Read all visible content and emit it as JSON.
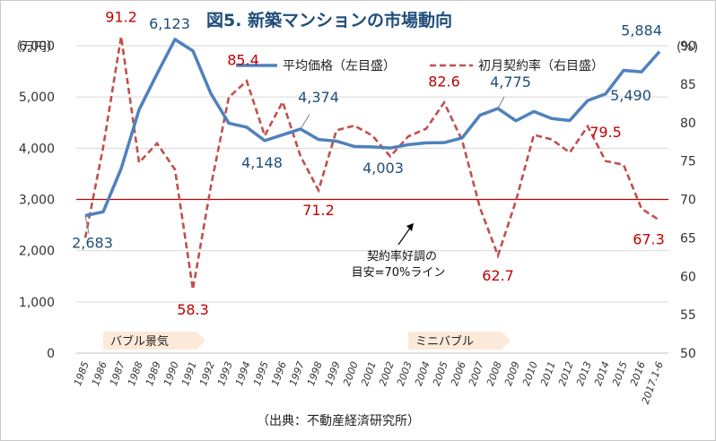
{
  "title": "図5. 新築マンションの市場動向",
  "source": "（出典：不動産経済研究所）",
  "colors": {
    "price": "#4f81bd",
    "rate": "#c0504d",
    "label_price": "#1f4e79",
    "label_rate": "#c00000",
    "band_fill": "#fde9d9"
  },
  "chart_data": {
    "type": "line",
    "categories": [
      "1985",
      "1986",
      "1987",
      "1988",
      "1989",
      "1990",
      "1991",
      "1992",
      "1993",
      "1994",
      "1995",
      "1996",
      "1997",
      "1998",
      "1999",
      "2000",
      "2001",
      "2002",
      "2003",
      "2004",
      "2005",
      "2006",
      "2007",
      "2008",
      "2009",
      "2010",
      "2011",
      "2012",
      "2013",
      "2014",
      "2015",
      "2016",
      "2017.1-6"
    ],
    "left_axis": {
      "unit_label": "（万円）",
      "min": 0,
      "max": 6000,
      "ticks": [
        "0",
        "1,000",
        "2,000",
        "3,000",
        "4,000",
        "5,000",
        "6,000"
      ]
    },
    "right_axis": {
      "unit_label": "(%)",
      "min": 50,
      "max": 90,
      "ticks": [
        "50",
        "55",
        "60",
        "65",
        "70",
        "75",
        "80",
        "85",
        "90"
      ]
    },
    "grid": true,
    "legend_position": "top-right",
    "series": [
      {
        "name": "平均価格（左目盛）",
        "axis": "left",
        "style": "solid",
        "values": [
          2683,
          2758,
          3600,
          4750,
          5450,
          6123,
          5900,
          5066,
          4488,
          4409,
          4148,
          4260,
          4374,
          4170,
          4138,
          4034,
          4026,
          4003,
          4069,
          4104,
          4108,
          4200,
          4644,
          4775,
          4535,
          4716,
          4578,
          4540,
          4929,
          5060,
          5518,
          5490,
          5884
        ]
      },
      {
        "name": "初月契約率（右目盛）",
        "axis": "right",
        "style": "dashed",
        "values": [
          65.0,
          76.8,
          91.2,
          74.8,
          77.3,
          73.9,
          58.3,
          71.7,
          83.3,
          85.4,
          78.3,
          82.7,
          75.6,
          71.2,
          79.0,
          79.6,
          78.3,
          75.6,
          78.2,
          79.2,
          82.6,
          77.7,
          68.9,
          62.7,
          69.8,
          78.4,
          77.8,
          76.1,
          79.5,
          75.0,
          74.5,
          68.8,
          67.3
        ]
      }
    ],
    "annotations": {
      "price_labels": [
        {
          "index": 0,
          "text": "2,683"
        },
        {
          "index": 5,
          "text": "6,123"
        },
        {
          "index": 10,
          "text": "4,148"
        },
        {
          "index": 12,
          "text": "4,374"
        },
        {
          "index": 17,
          "text": "4,003"
        },
        {
          "index": 23,
          "text": "4,775"
        },
        {
          "index": 31,
          "text": "5,490"
        },
        {
          "index": 32,
          "text": "5,884"
        }
      ],
      "rate_labels": [
        {
          "index": 2,
          "text": "91.2"
        },
        {
          "index": 6,
          "text": "58.3"
        },
        {
          "index": 9,
          "text": "85.4"
        },
        {
          "index": 13,
          "text": "71.2"
        },
        {
          "index": 20,
          "text": "82.6"
        },
        {
          "index": 23,
          "text": "62.7"
        },
        {
          "index": 28,
          "text": "79.5"
        },
        {
          "index": 32,
          "text": "67.3"
        }
      ],
      "reference_line": {
        "value": 70,
        "axis": "right",
        "label_line1": "契約率好調の",
        "label_line2": "目安=70%ライン"
      },
      "bands": [
        {
          "text": "バブル景気",
          "from_index": 2,
          "to_index": 6
        },
        {
          "text": "ミニバブル",
          "from_index": 19,
          "to_index": 23
        }
      ]
    }
  }
}
